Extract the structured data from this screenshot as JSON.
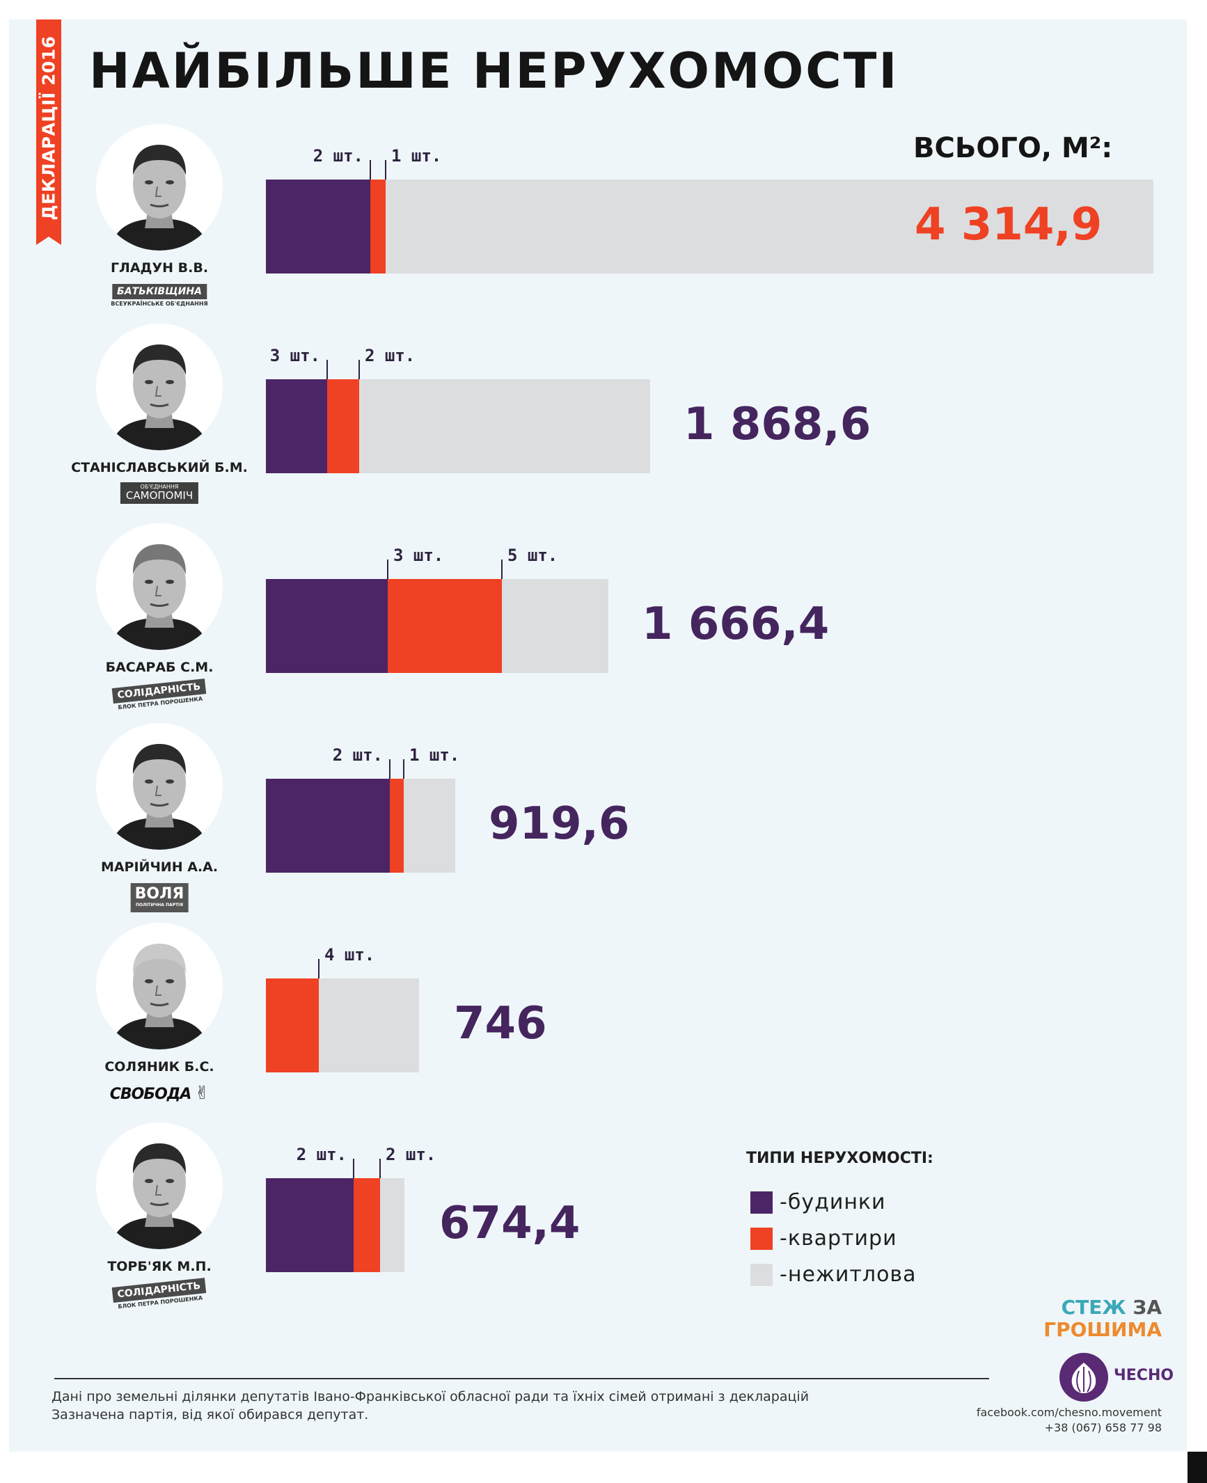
{
  "header": {
    "side_tab": "ДЕКЛАРАЦІЇ 2016",
    "title": "НАЙБІЛЬШЕ НЕРУХОМОСТІ",
    "total_label": "ВСЬОГО, М²:"
  },
  "colors": {
    "house": "#4b2566",
    "flat": "#ef4123",
    "nonresidential": "#dcdddf",
    "accent": "#ef4123",
    "value_text": "#45255e"
  },
  "deputies": [
    {
      "name": "ГЛАДУН В.В.",
      "party": "БАТЬКІВЩИНА",
      "party_sub": "ВСЕУКРАЇНСЬКЕ ОБ'ЄДНАННЯ",
      "photo_icon": "portrait-photo"
    },
    {
      "name": "СТАНІСЛАВСЬКИЙ Б.М.",
      "party": "САМОПОМІЧ",
      "party_sub": "ОБ'ЄДНАННЯ",
      "photo_icon": "portrait-photo"
    },
    {
      "name": "БАСАРАБ С.М.",
      "party": "СОЛІДАРНІСТЬ",
      "party_sub": "БЛОК ПЕТРА ПОРОШЕНКА",
      "photo_icon": "portrait-photo"
    },
    {
      "name": "МАРІЙЧИН А.А.",
      "party": "ВОЛЯ",
      "party_sub": "ПОЛІТИЧНА ПАРТІЯ",
      "photo_icon": "portrait-photo"
    },
    {
      "name": "СОЛЯНИК Б.С.",
      "party": "СВОБОДА",
      "party_sub": "",
      "photo_icon": "portrait-photo"
    },
    {
      "name": "ТОРБ'ЯК М.П.",
      "party": "СОЛІДАРНІСТЬ",
      "party_sub": "БЛОК ПЕТРА ПОРОШЕНКА",
      "photo_icon": "portrait-photo"
    }
  ],
  "chart_data": {
    "type": "bar",
    "orientation": "horizontal",
    "stacked": true,
    "units": "м²",
    "categories": [
      "ГЛАДУН В.В.",
      "СТАНІСЛАВСЬКИЙ Б.М.",
      "БАСАРАБ С.М.",
      "МАРІЙЧИН А.А.",
      "СОЛЯНИК Б.С.",
      "ТОРБ'ЯК М.П."
    ],
    "totals": [
      4314.9,
      1868.6,
      1666.4,
      919.6,
      746,
      674.4
    ],
    "total_labels": [
      "4 314,9",
      "1 868,6",
      "1 666,4",
      "919,6",
      "746",
      "674,4"
    ],
    "series": [
      {
        "name": "будинки",
        "values": [
          507,
          298,
          592,
          602,
          0,
          428
        ]
      },
      {
        "name": "квартири",
        "values": [
          73,
          155,
          555,
          67,
          259,
          128
        ]
      },
      {
        "name": "нежитлова",
        "values": [
          3734.9,
          1415.6,
          519.4,
          250.6,
          487,
          118.4
        ]
      }
    ],
    "count_labels": [
      [
        "2 шт.",
        "1 шт."
      ],
      [
        "3 шт.",
        "2 шт."
      ],
      [
        "3 шт.",
        "5 шт."
      ],
      [
        "2 шт.",
        "1 шт."
      ],
      [
        "4 шт."
      ],
      [
        "2 шт.",
        "2 шт."
      ]
    ],
    "legend": {
      "title": "ТИПИ НЕРУХОМОСТІ:",
      "items": [
        "-будинки",
        "-квартири",
        "-нежитлова"
      ],
      "placement": "bottom-right"
    }
  },
  "footer": {
    "note_1": "Дані про земельні ділянки депутатів Івано-Франківської обласної ради та їхніх сімей отримані з декларацій",
    "note_2": "Зазначена партія, від якої обирався депутат.",
    "brand_1a": "СТЕЖ",
    "brand_1b": " ЗА",
    "brand_2": "ГРОШИМА",
    "org": "ЧЕСНО",
    "contact_1": "facebook.com/chesno.movement",
    "contact_2": "+38 (067) 658 77 98"
  }
}
